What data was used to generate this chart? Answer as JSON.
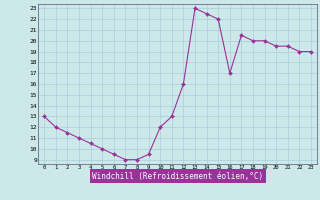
{
  "xlabel": "Windchill (Refroidissement éolien,°C)",
  "color": "#993399",
  "bg_color": "#cce8e8",
  "grid_color": "#aaccdd",
  "xlim": [
    -0.5,
    23.5
  ],
  "ylim": [
    8.6,
    23.4
  ],
  "xticks": [
    0,
    1,
    2,
    3,
    4,
    5,
    6,
    7,
    8,
    9,
    10,
    11,
    12,
    13,
    14,
    15,
    16,
    17,
    18,
    19,
    20,
    21,
    22,
    23
  ],
  "yticks": [
    9,
    10,
    11,
    12,
    13,
    14,
    15,
    16,
    17,
    18,
    19,
    20,
    21,
    22,
    23
  ],
  "path_x": [
    0,
    1,
    2,
    3,
    4,
    5,
    6,
    7,
    8,
    9,
    10,
    11,
    12,
    13,
    14,
    15,
    16,
    17,
    18,
    19,
    20,
    21,
    22,
    23
  ],
  "path_y": [
    13,
    12,
    11.5,
    11,
    10.5,
    10,
    9.5,
    9,
    9,
    9.5,
    12,
    13,
    16,
    23,
    22.5,
    22,
    17,
    20.5,
    20,
    20,
    19.5,
    19.5,
    19,
    19
  ]
}
